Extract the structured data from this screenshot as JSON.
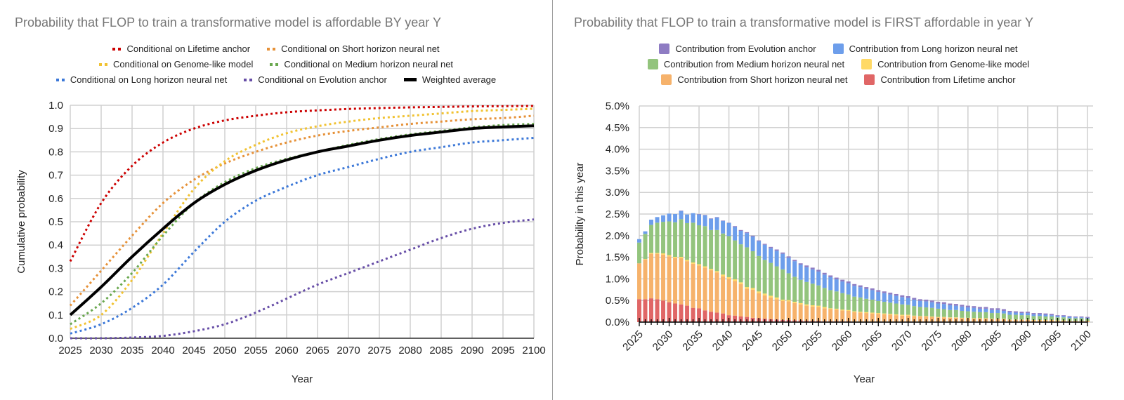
{
  "chart_data": [
    {
      "type": "line",
      "title": "Probability that FLOP to train a transformative model is affordable BY year Y",
      "xlabel": "Year",
      "ylabel": "Cumulative probability",
      "xlim": [
        2025,
        2100
      ],
      "ylim": [
        0,
        1
      ],
      "x_ticks": [
        "2025",
        "2030",
        "2035",
        "2040",
        "2045",
        "2050",
        "2055",
        "2060",
        "2065",
        "2070",
        "2075",
        "2080",
        "2085",
        "2090",
        "2095",
        "2100"
      ],
      "y_ticks": [
        "0.0",
        "0.1",
        "0.2",
        "0.3",
        "0.4",
        "0.5",
        "0.6",
        "0.7",
        "0.8",
        "0.9",
        "1.0"
      ],
      "grid": true,
      "legend_position": "top",
      "x": [
        2025,
        2030,
        2035,
        2040,
        2045,
        2050,
        2055,
        2060,
        2065,
        2070,
        2075,
        2080,
        2085,
        2090,
        2095,
        2100
      ],
      "series": [
        {
          "name": "Conditional on Lifetime anchor",
          "style": "dotted",
          "color": "#cc0000",
          "values": [
            0.33,
            0.58,
            0.74,
            0.84,
            0.9,
            0.935,
            0.955,
            0.97,
            0.978,
            0.984,
            0.988,
            0.991,
            0.993,
            0.995,
            0.996,
            0.997
          ]
        },
        {
          "name": "Conditional on Short horizon neural net",
          "style": "dotted",
          "color": "#e69138",
          "values": [
            0.14,
            0.29,
            0.44,
            0.58,
            0.68,
            0.75,
            0.8,
            0.84,
            0.87,
            0.89,
            0.905,
            0.92,
            0.93,
            0.94,
            0.945,
            0.955
          ]
        },
        {
          "name": "Conditional on Genome-like model",
          "style": "dotted",
          "color": "#f1c232",
          "values": [
            0.04,
            0.1,
            0.25,
            0.45,
            0.64,
            0.76,
            0.83,
            0.88,
            0.91,
            0.93,
            0.945,
            0.955,
            0.965,
            0.975,
            0.98,
            0.985
          ]
        },
        {
          "name": "Conditional on Medium horizon neural net",
          "style": "dotted",
          "color": "#6aa84f",
          "values": [
            0.06,
            0.15,
            0.28,
            0.44,
            0.58,
            0.67,
            0.73,
            0.77,
            0.8,
            0.83,
            0.855,
            0.875,
            0.89,
            0.905,
            0.915,
            0.92
          ]
        },
        {
          "name": "Conditional on Long horizon neural net",
          "style": "dotted",
          "color": "#3c78d8",
          "values": [
            0.02,
            0.06,
            0.13,
            0.23,
            0.37,
            0.5,
            0.59,
            0.65,
            0.7,
            0.735,
            0.77,
            0.8,
            0.82,
            0.84,
            0.85,
            0.86
          ]
        },
        {
          "name": "Conditional on Evolution anchor",
          "style": "dotted",
          "color": "#674ea7",
          "values": [
            0.0,
            0.0,
            0.003,
            0.01,
            0.03,
            0.06,
            0.11,
            0.17,
            0.23,
            0.28,
            0.33,
            0.38,
            0.43,
            0.47,
            0.495,
            0.51
          ]
        },
        {
          "name": "Weighted average",
          "style": "solid",
          "color": "#000000",
          "values": [
            0.1,
            0.22,
            0.35,
            0.47,
            0.58,
            0.66,
            0.72,
            0.765,
            0.8,
            0.825,
            0.85,
            0.87,
            0.885,
            0.9,
            0.907,
            0.912
          ]
        }
      ]
    },
    {
      "type": "bar",
      "stacked": true,
      "title": "Probability that FLOP to train a transformative model is FIRST affordable in year Y",
      "xlabel": "Year",
      "ylabel": "Probability in this year",
      "xlim": [
        2025,
        2100
      ],
      "ylim": [
        0,
        5.0
      ],
      "y_unit": "%",
      "x_ticks": [
        "2025",
        "2030",
        "2035",
        "2040",
        "2045",
        "2050",
        "2055",
        "2060",
        "2065",
        "2070",
        "2075",
        "2080",
        "2085",
        "2090",
        "2095",
        "2100"
      ],
      "y_ticks": [
        "0.0%",
        "0.5%",
        "1.0%",
        "1.5%",
        "2.0%",
        "2.5%",
        "3.0%",
        "3.5%",
        "4.0%",
        "4.5%",
        "5.0%"
      ],
      "grid": true,
      "legend_position": "top",
      "categories_start": 2025,
      "categories_end": 2100,
      "series": [
        {
          "name": "Contribution from Lifetime anchor",
          "color": "#e06666",
          "values": [
            0.53,
            0.53,
            0.55,
            0.53,
            0.5,
            0.46,
            0.43,
            0.41,
            0.38,
            0.33,
            0.32,
            0.27,
            0.24,
            0.22,
            0.2,
            0.16,
            0.15,
            0.13,
            0.12,
            0.1,
            0.09,
            0.08,
            0.07,
            0.06,
            0.05,
            0.05,
            0.04,
            0.04,
            0.03,
            0.03,
            0.03,
            0.02,
            0.02,
            0.02,
            0.02,
            0.02,
            0.01,
            0.01,
            0.01,
            0.01,
            0.01,
            0.01,
            0.01,
            0.01,
            0.01,
            0.01,
            0.01,
            0.01,
            0.01,
            0.01,
            0.01,
            0.01,
            0.01,
            0.01,
            0.01,
            0.01,
            0.01,
            0.01,
            0.01,
            0.01,
            0.01,
            0.01,
            0.0,
            0.0,
            0.0,
            0.0,
            0.0,
            0.0,
            0.0,
            0.0,
            0.0,
            0.0,
            0.0,
            0.0,
            0.0,
            0.0
          ]
        },
        {
          "name": "Contribution from Short horizon neural net",
          "color": "#f6b26b",
          "values": [
            0.83,
            0.92,
            1.03,
            1.05,
            1.06,
            1.06,
            1.05,
            1.07,
            1.03,
            1.02,
            0.99,
            0.99,
            0.96,
            0.93,
            0.86,
            0.84,
            0.8,
            0.75,
            0.65,
            0.65,
            0.58,
            0.54,
            0.5,
            0.47,
            0.44,
            0.43,
            0.4,
            0.37,
            0.35,
            0.33,
            0.32,
            0.3,
            0.28,
            0.27,
            0.25,
            0.24,
            0.22,
            0.21,
            0.2,
            0.19,
            0.18,
            0.17,
            0.16,
            0.15,
            0.14,
            0.14,
            0.13,
            0.12,
            0.12,
            0.11,
            0.1,
            0.1,
            0.09,
            0.09,
            0.08,
            0.08,
            0.07,
            0.07,
            0.07,
            0.06,
            0.06,
            0.06,
            0.05,
            0.05,
            0.05,
            0.05,
            0.04,
            0.04,
            0.04,
            0.04,
            0.03,
            0.03,
            0.03,
            0.03,
            0.03,
            0.03
          ]
        },
        {
          "name": "Contribution from Genome-like model",
          "color": "#ffd966",
          "values": [
            0.0,
            0.01,
            0.02,
            0.02,
            0.03,
            0.03,
            0.03,
            0.03,
            0.03,
            0.03,
            0.03,
            0.03,
            0.03,
            0.03,
            0.04,
            0.04,
            0.04,
            0.04,
            0.04,
            0.04,
            0.04,
            0.04,
            0.04,
            0.04,
            0.03,
            0.03,
            0.03,
            0.03,
            0.03,
            0.03,
            0.03,
            0.03,
            0.02,
            0.02,
            0.02,
            0.02,
            0.02,
            0.02,
            0.02,
            0.02,
            0.02,
            0.02,
            0.02,
            0.02,
            0.02,
            0.02,
            0.01,
            0.01,
            0.01,
            0.01,
            0.01,
            0.01,
            0.01,
            0.01,
            0.01,
            0.01,
            0.01,
            0.01,
            0.01,
            0.01,
            0.01,
            0.01,
            0.01,
            0.01,
            0.01,
            0.01,
            0.01,
            0.01,
            0.01,
            0.01,
            0.01,
            0.01,
            0.0,
            0.0,
            0.0,
            0.0
          ]
        },
        {
          "name": "Contribution from Medium horizon neural net",
          "color": "#93c47d",
          "values": [
            0.48,
            0.58,
            0.65,
            0.7,
            0.73,
            0.78,
            0.8,
            0.87,
            0.85,
            0.92,
            0.9,
            0.93,
            0.9,
            0.95,
            0.95,
            0.95,
            0.9,
            0.88,
            0.92,
            0.85,
            0.82,
            0.78,
            0.76,
            0.72,
            0.7,
            0.62,
            0.58,
            0.54,
            0.52,
            0.5,
            0.47,
            0.44,
            0.42,
            0.4,
            0.38,
            0.36,
            0.34,
            0.33,
            0.31,
            0.3,
            0.28,
            0.27,
            0.26,
            0.25,
            0.24,
            0.23,
            0.22,
            0.21,
            0.2,
            0.2,
            0.19,
            0.18,
            0.17,
            0.17,
            0.16,
            0.15,
            0.15,
            0.14,
            0.14,
            0.13,
            0.13,
            0.12,
            0.11,
            0.11,
            0.1,
            0.1,
            0.09,
            0.09,
            0.08,
            0.08,
            0.07,
            0.07,
            0.06,
            0.06,
            0.06,
            0.05
          ]
        },
        {
          "name": "Contribution from Long horizon neural net",
          "color": "#6d9eeb",
          "values": [
            0.08,
            0.06,
            0.12,
            0.13,
            0.15,
            0.18,
            0.19,
            0.19,
            0.2,
            0.22,
            0.25,
            0.25,
            0.26,
            0.29,
            0.29,
            0.3,
            0.31,
            0.31,
            0.33,
            0.34,
            0.34,
            0.35,
            0.34,
            0.36,
            0.36,
            0.36,
            0.36,
            0.35,
            0.34,
            0.33,
            0.32,
            0.31,
            0.3,
            0.28,
            0.27,
            0.26,
            0.25,
            0.24,
            0.23,
            0.22,
            0.21,
            0.2,
            0.19,
            0.18,
            0.17,
            0.16,
            0.15,
            0.14,
            0.14,
            0.13,
            0.12,
            0.12,
            0.11,
            0.1,
            0.1,
            0.09,
            0.09,
            0.08,
            0.08,
            0.07,
            0.07,
            0.06,
            0.06,
            0.05,
            0.05,
            0.05,
            0.04,
            0.04,
            0.04,
            0.03,
            0.03,
            0.03,
            0.03,
            0.02,
            0.02,
            0.02
          ]
        },
        {
          "name": "Contribution from Evolution anchor",
          "color": "#8e7cc3",
          "values": [
            0.0,
            0.0,
            0.0,
            0.0,
            0.0,
            0.0,
            0.0,
            0.01,
            0.0,
            0.0,
            0.01,
            0.01,
            0.01,
            0.01,
            0.01,
            0.01,
            0.02,
            0.02,
            0.02,
            0.02,
            0.02,
            0.02,
            0.03,
            0.03,
            0.03,
            0.03,
            0.03,
            0.03,
            0.04,
            0.04,
            0.04,
            0.04,
            0.04,
            0.04,
            0.04,
            0.04,
            0.04,
            0.04,
            0.04,
            0.04,
            0.04,
            0.04,
            0.04,
            0.04,
            0.04,
            0.04,
            0.04,
            0.04,
            0.04,
            0.04,
            0.04,
            0.04,
            0.04,
            0.04,
            0.04,
            0.04,
            0.04,
            0.04,
            0.04,
            0.04,
            0.04,
            0.04,
            0.03,
            0.03,
            0.03,
            0.03,
            0.03,
            0.03,
            0.03,
            0.03,
            0.02,
            0.02,
            0.02,
            0.02,
            0.02,
            0.02
          ]
        }
      ]
    }
  ]
}
